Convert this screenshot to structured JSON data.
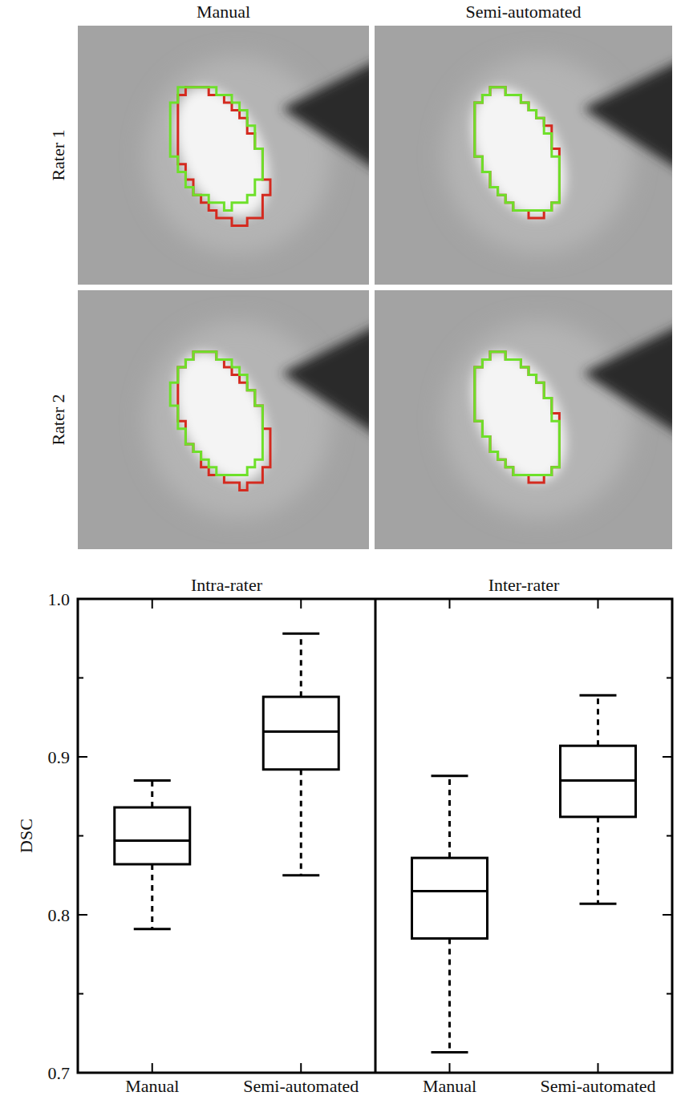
{
  "figure": {
    "columns": [
      "Manual",
      "Semi-automated"
    ],
    "rows": [
      "Rater 1",
      "Rater 2"
    ]
  },
  "chart_data": {
    "type": "box",
    "ylabel": "DSC",
    "ylim": [
      0.7,
      1.0
    ],
    "yticks": [
      0.7,
      0.8,
      0.9,
      {
        "value": 1,
        "label": "1.0"
      }
    ],
    "minor_yticks": [
      0.75,
      0.85,
      0.95
    ],
    "panels": [
      {
        "title": "Intra-rater",
        "categories": [
          "Manual",
          "Semi-automated"
        ],
        "boxes": [
          {
            "whisker_low": 0.791,
            "q1": 0.832,
            "median": 0.847,
            "q3": 0.868,
            "whisker_high": 0.885
          },
          {
            "whisker_low": 0.825,
            "q1": 0.892,
            "median": 0.916,
            "q3": 0.938,
            "whisker_high": 0.978
          }
        ]
      },
      {
        "title": "Inter-rater",
        "categories": [
          "Manual",
          "Semi-automated"
        ],
        "boxes": [
          {
            "whisker_low": 0.713,
            "q1": 0.785,
            "median": 0.815,
            "q3": 0.836,
            "whisker_high": 0.888
          },
          {
            "whisker_low": 0.807,
            "q1": 0.862,
            "median": 0.885,
            "q3": 0.907,
            "whisker_high": 0.939
          }
        ]
      }
    ]
  }
}
